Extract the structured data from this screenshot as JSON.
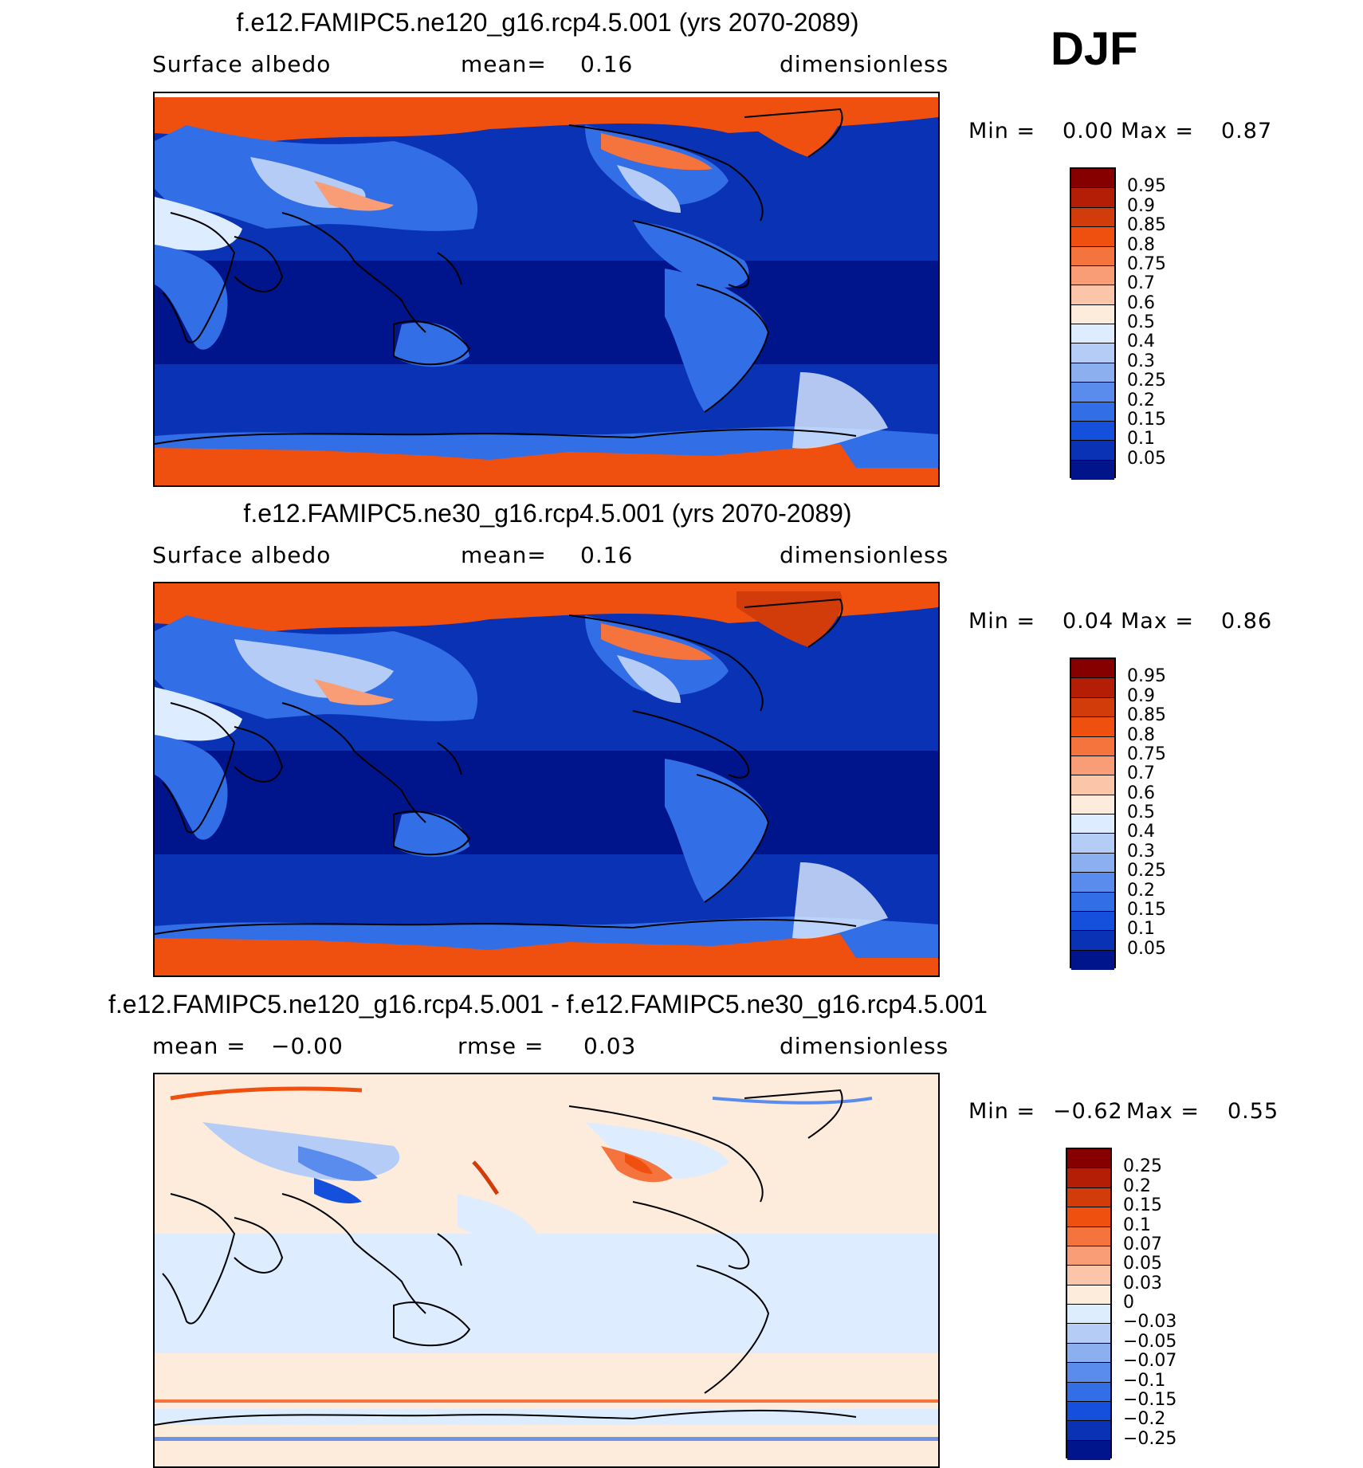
{
  "season": "DJF",
  "colors": {
    "diverging_red_blue": [
      "#870000",
      "#b41e06",
      "#d23c0a",
      "#f0500f",
      "#f5733c",
      "#f89d76",
      "#fbc5aa",
      "#fdecdc",
      "#ddecff",
      "#b4ccf6",
      "#8caff0",
      "#5a8cee",
      "#326ee6",
      "#1450dc",
      "#0a32b4",
      "#00148c"
    ],
    "continent_line": "#000000"
  },
  "panels": [
    {
      "title": "f.e12.FAMIPC5.ne120_g16.rcp4.5.001 (yrs 2070-2089)",
      "left_label": "Surface albedo",
      "middle_label": "mean=",
      "middle_value": "0.16",
      "right_label": "dimensionless",
      "min_label": "Min =",
      "min_value": "0.00",
      "max_label": "Max =",
      "max_value": "0.87",
      "colorbar_labels": [
        "0.95",
        "0.9",
        "0.85",
        "0.8",
        "0.75",
        "0.7",
        "0.6",
        "0.5",
        "0.4",
        "0.3",
        "0.25",
        "0.2",
        "0.15",
        "0.1",
        "0.05"
      ]
    },
    {
      "title": "f.e12.FAMIPC5.ne30_g16.rcp4.5.001 (yrs 2070-2089)",
      "left_label": "Surface albedo",
      "middle_label": "mean=",
      "middle_value": "0.16",
      "right_label": "dimensionless",
      "min_label": "Min =",
      "min_value": "0.04",
      "max_label": "Max =",
      "max_value": "0.86",
      "colorbar_labels": [
        "0.95",
        "0.9",
        "0.85",
        "0.8",
        "0.75",
        "0.7",
        "0.6",
        "0.5",
        "0.4",
        "0.3",
        "0.25",
        "0.2",
        "0.15",
        "0.1",
        "0.05"
      ]
    },
    {
      "title": "f.e12.FAMIPC5.ne120_g16.rcp4.5.001 - f.e12.FAMIPC5.ne30_g16.rcp4.5.001",
      "left_label": "mean =",
      "left_value": "−0.00",
      "middle_label": "rmse =",
      "middle_value": "0.03",
      "right_label": "dimensionless",
      "min_label": "Min =",
      "min_value": "−0.62",
      "max_label": "Max =",
      "max_value": "0.55",
      "colorbar_labels": [
        "0.25",
        "0.2",
        "0.15",
        "0.1",
        "0.07",
        "0.05",
        "0.03",
        "0",
        "−0.03",
        "−0.05",
        "−0.07",
        "−0.1",
        "−0.15",
        "−0.2",
        "−0.25"
      ]
    }
  ],
  "chart_data": [
    {
      "type": "heatmap",
      "title": "f.e12.FAMIPC5.ne120_g16.rcp4.5.001 (yrs 2070-2089)",
      "variable": "Surface albedo",
      "units": "dimensionless",
      "mean": 0.16,
      "min": 0.0,
      "max": 0.87,
      "contour_levels": [
        0.05,
        0.1,
        0.15,
        0.2,
        0.25,
        0.3,
        0.4,
        0.5,
        0.6,
        0.7,
        0.75,
        0.8,
        0.85,
        0.9,
        0.95
      ]
    },
    {
      "type": "heatmap",
      "title": "f.e12.FAMIPC5.ne30_g16.rcp4.5.001 (yrs 2070-2089)",
      "variable": "Surface albedo",
      "units": "dimensionless",
      "mean": 0.16,
      "min": 0.04,
      "max": 0.86,
      "contour_levels": [
        0.05,
        0.1,
        0.15,
        0.2,
        0.25,
        0.3,
        0.4,
        0.5,
        0.6,
        0.7,
        0.75,
        0.8,
        0.85,
        0.9,
        0.95
      ]
    },
    {
      "type": "heatmap",
      "title": "f.e12.FAMIPC5.ne120_g16.rcp4.5.001 - f.e12.FAMIPC5.ne30_g16.rcp4.5.001",
      "units": "dimensionless",
      "mean": -0.0,
      "rmse": 0.03,
      "min": -0.62,
      "max": 0.55,
      "contour_levels": [
        -0.25,
        -0.2,
        -0.15,
        -0.1,
        -0.07,
        -0.05,
        -0.03,
        0,
        0.03,
        0.05,
        0.07,
        0.1,
        0.15,
        0.2,
        0.25
      ]
    }
  ]
}
